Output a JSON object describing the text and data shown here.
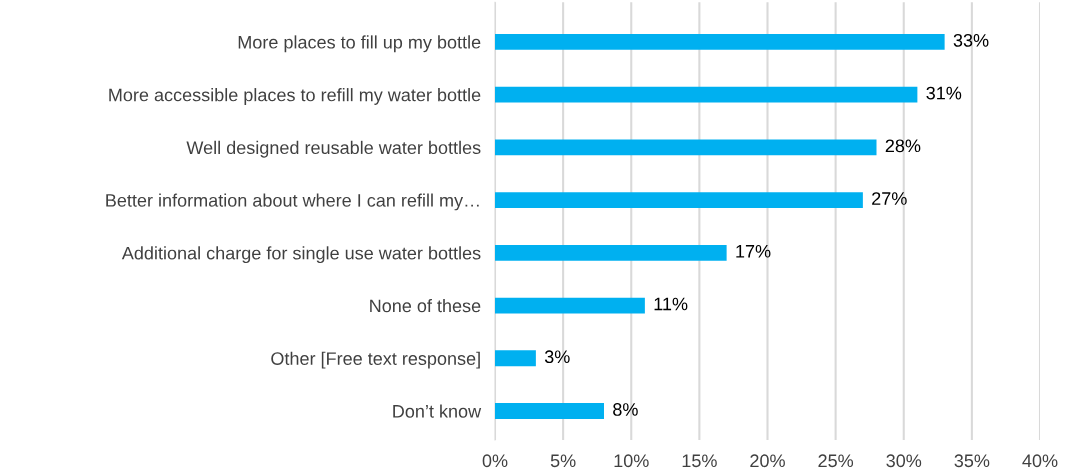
{
  "chart_data": {
    "type": "bar",
    "orientation": "horizontal",
    "categories": [
      "More places to fill up my bottle",
      "More accessible places to refill my water bottle",
      "Well designed reusable water bottles",
      "Better information about where I can refill my…",
      "Additional charge for single use water bottles",
      "None of these",
      "Other [Free text response]",
      "Don’t know"
    ],
    "values": [
      33,
      31,
      28,
      27,
      17,
      11,
      3,
      8
    ],
    "color": "#00b0f0",
    "value_labels": [
      "33%",
      "31%",
      "28%",
      "27%",
      "17%",
      "11%",
      "3%",
      "8%"
    ],
    "xlim": [
      0,
      40
    ],
    "xticks": [
      {
        "value": 0,
        "label": "0%"
      },
      {
        "value": 5,
        "label": "5%"
      },
      {
        "value": 10,
        "label": "10%"
      },
      {
        "value": 15,
        "label": "15%"
      },
      {
        "value": 20,
        "label": "20%"
      },
      {
        "value": 25,
        "label": "25%"
      },
      {
        "value": 30,
        "label": "30%"
      },
      {
        "value": 35,
        "label": "35%"
      },
      {
        "value": 40,
        "label": "40%"
      }
    ],
    "grid": "x",
    "legend": false
  }
}
